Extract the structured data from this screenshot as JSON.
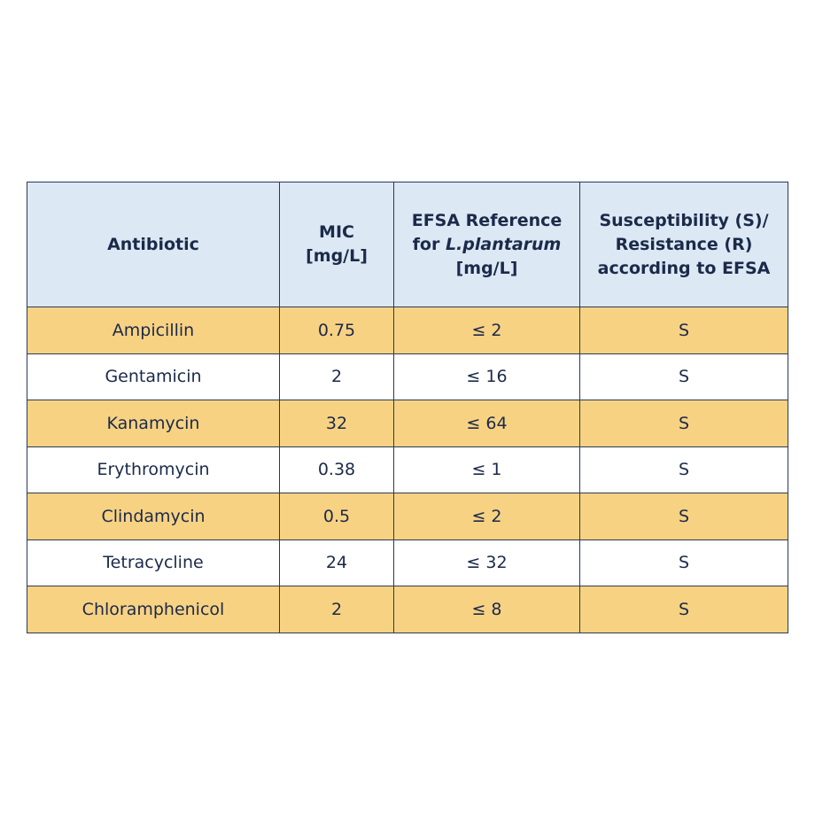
{
  "table": {
    "headers": {
      "antibiotic": "Antibiotic",
      "mic_line1": "MIC",
      "mic_line2": "[mg/L]",
      "efsa_line1": "EFSA Reference",
      "efsa_line2_prefix": "for ",
      "efsa_line2_species": "L.plantarum",
      "efsa_line3": "[mg/L]",
      "susc_line1": "Susceptibility (S)/",
      "susc_line2": "Resistance (R)",
      "susc_line3": "according to EFSA"
    },
    "rows": [
      {
        "antibiotic": "Ampicillin",
        "mic": "0.75",
        "efsa": "≤ 2",
        "result": "S"
      },
      {
        "antibiotic": "Gentamicin",
        "mic": "2",
        "efsa": "≤ 16",
        "result": "S"
      },
      {
        "antibiotic": "Kanamycin",
        "mic": "32",
        "efsa": "≤ 64",
        "result": "S"
      },
      {
        "antibiotic": "Erythromycin",
        "mic": "0.38",
        "efsa": "≤ 1",
        "result": "S"
      },
      {
        "antibiotic": "Clindamycin",
        "mic": "0.5",
        "efsa": "≤ 2",
        "result": "S"
      },
      {
        "antibiotic": "Tetracycline",
        "mic": "24",
        "efsa": "≤ 32",
        "result": "S"
      },
      {
        "antibiotic": "Chloramphenicol",
        "mic": "2",
        "efsa": "≤ 8",
        "result": "S"
      }
    ],
    "colors": {
      "header_bg": "#dce8f3",
      "stripe_bg": "#f8d283",
      "plain_bg": "#ffffff",
      "border": "#2b3a55",
      "text": "#1b2a4a"
    }
  }
}
